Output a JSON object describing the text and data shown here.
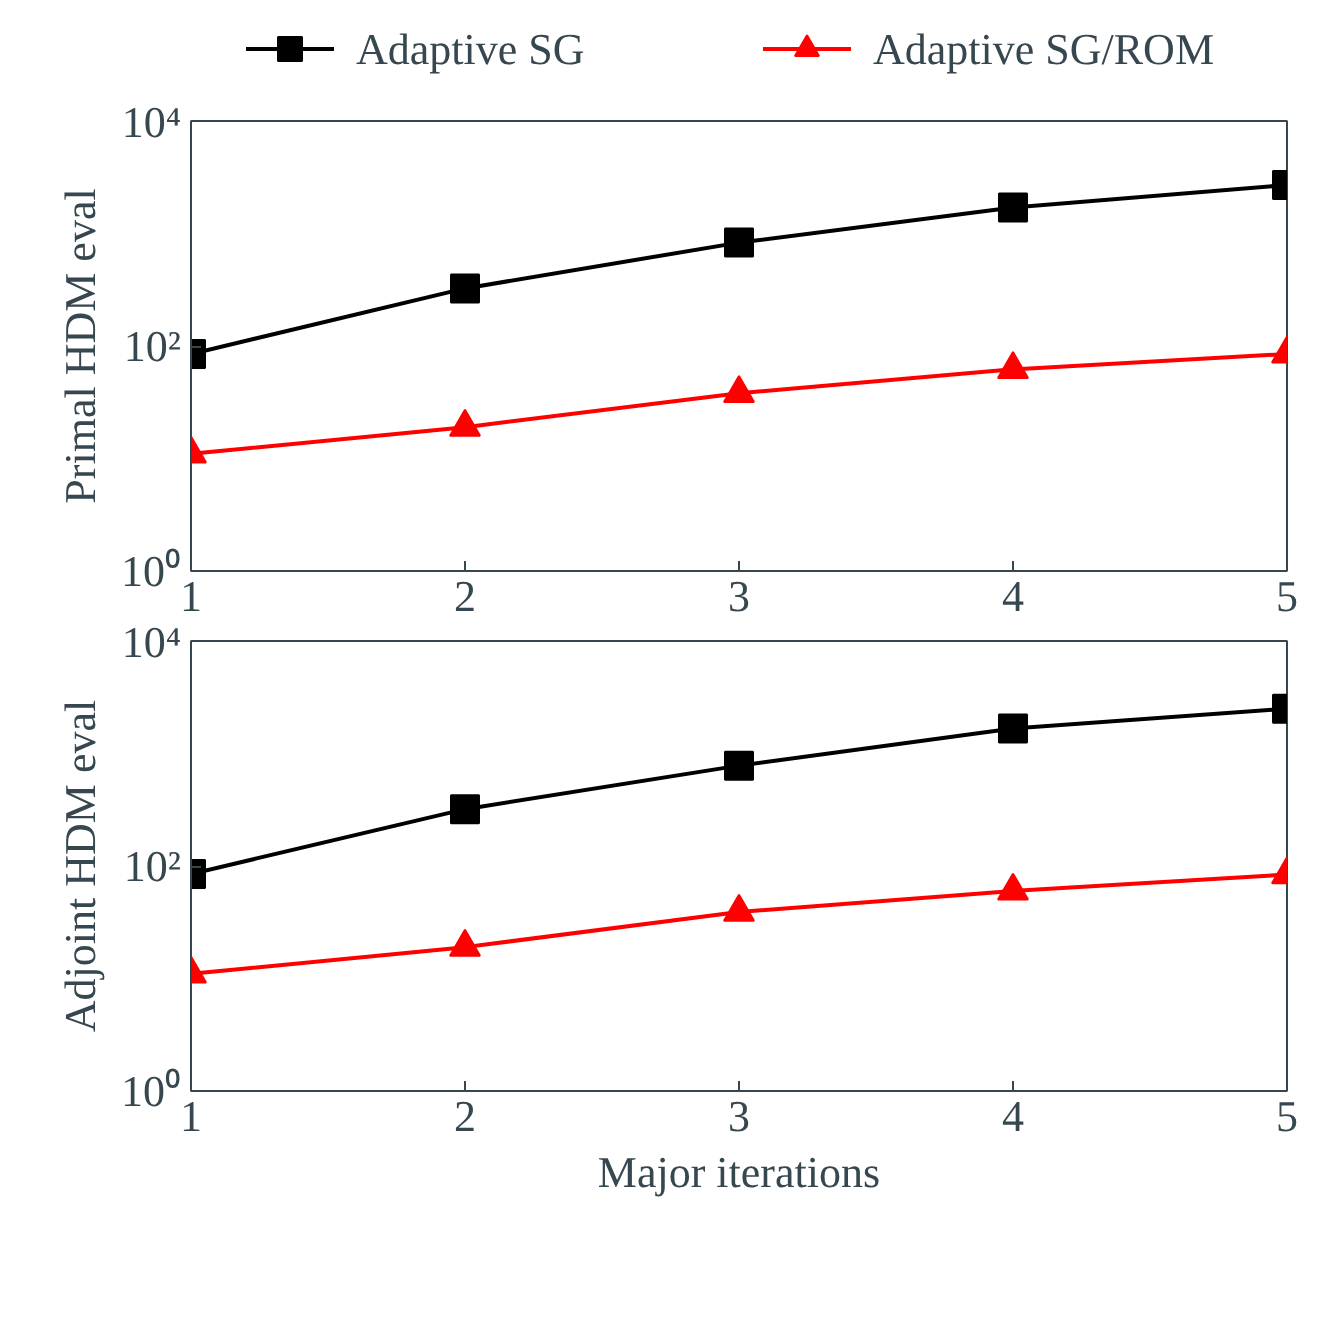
{
  "chart_data": [
    {
      "type": "line",
      "ylabel": "Primal HDM eval",
      "x": [
        1,
        2,
        3,
        4,
        5
      ],
      "xlim": [
        1,
        5
      ],
      "xticks": [
        1,
        2,
        3,
        4,
        5
      ],
      "ylim": [
        1,
        10000
      ],
      "yticks": [
        {
          "value": 1,
          "label": "10⁰"
        },
        {
          "value": 100,
          "label": "10²"
        },
        {
          "value": 10000,
          "label": "10⁴"
        }
      ],
      "log": "y",
      "grid": false,
      "legend": "top",
      "line_style": "solid",
      "series": [
        {
          "name": "Adaptive SG",
          "color": "#000000",
          "marker": "square",
          "values": [
            85,
            325,
            830,
            1700,
            2700
          ]
        },
        {
          "name": "Adaptive SG/ROM",
          "color": "#ff0000",
          "marker": "triangle",
          "values": [
            11,
            19,
            38,
            62,
            85
          ]
        }
      ]
    },
    {
      "type": "line",
      "ylabel": "Adjoint HDM eval",
      "xlabel": "Major iterations",
      "x": [
        1,
        2,
        3,
        4,
        5
      ],
      "xlim": [
        1,
        5
      ],
      "xticks": [
        1,
        2,
        3,
        4,
        5
      ],
      "ylim": [
        1,
        10000
      ],
      "yticks": [
        {
          "value": 1,
          "label": "10⁰"
        },
        {
          "value": 100,
          "label": "10²"
        },
        {
          "value": 10000,
          "label": "10⁴"
        }
      ],
      "log": "y",
      "grid": false,
      "line_style": "solid",
      "series": [
        {
          "color": "#000000",
          "marker": "square",
          "values": [
            85,
            320,
            780,
            1670,
            2500
          ]
        },
        {
          "color": "#ff0000",
          "marker": "triangle",
          "values": [
            11,
            19,
            39,
            60,
            84
          ]
        }
      ]
    }
  ]
}
